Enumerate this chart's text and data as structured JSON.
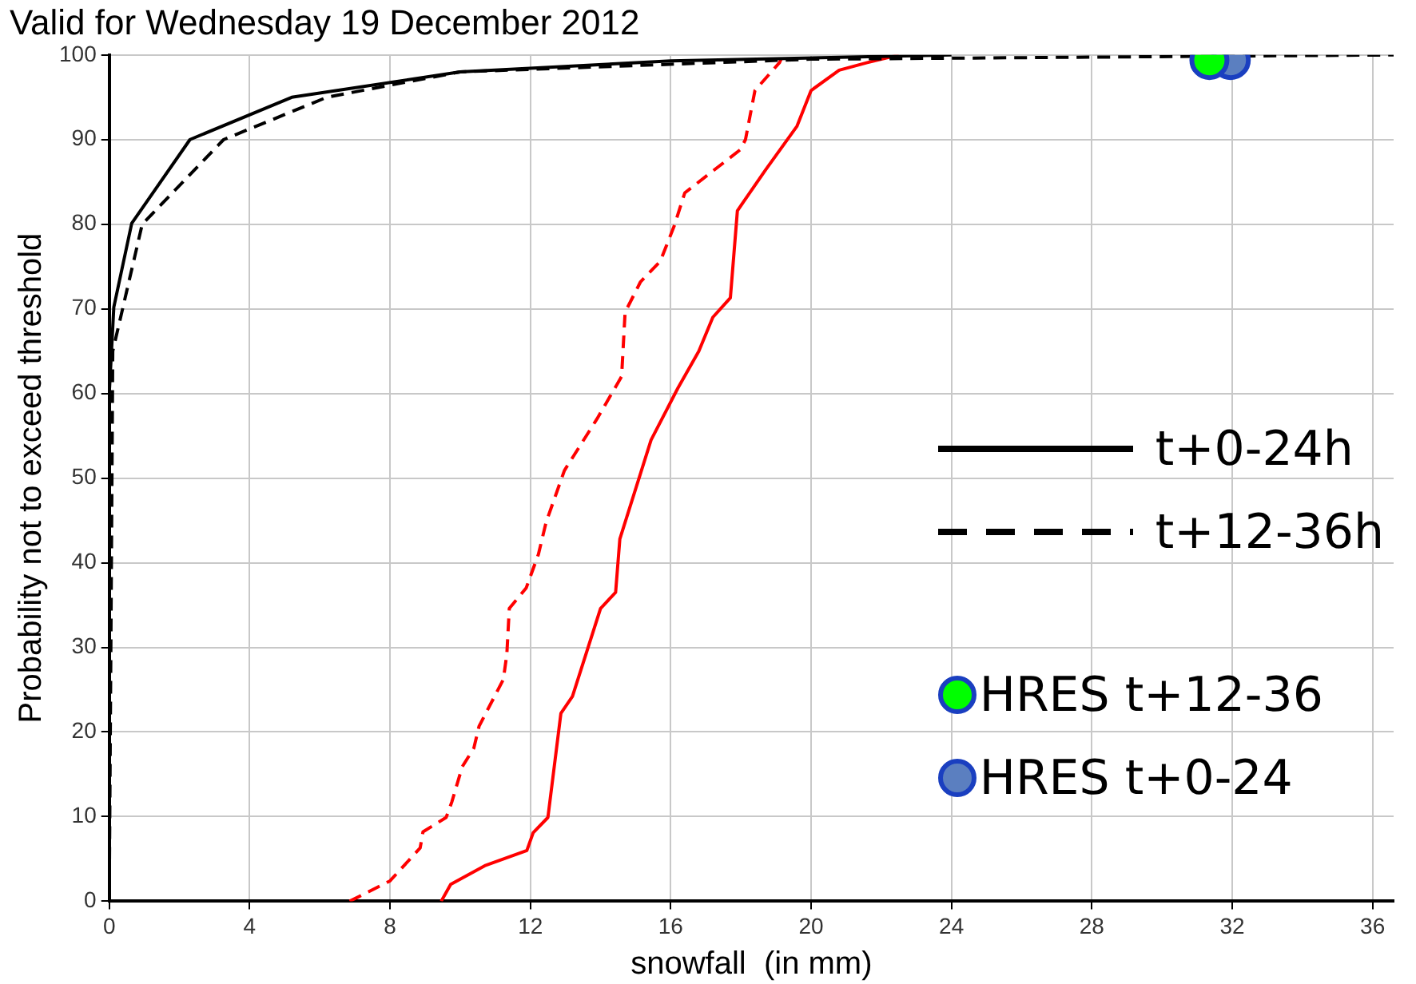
{
  "chart_data": {
    "type": "line",
    "title": "Valid for Wednesday 19 December 2012",
    "xlabel": "snowfall  (in mm)",
    "ylabel": "Probability not to exceed threshold",
    "xlim": [
      0,
      36.6
    ],
    "xticks": [
      0,
      4,
      8,
      12,
      16,
      20,
      24,
      28,
      32,
      36
    ],
    "ylim": [
      0,
      100
    ],
    "yticks": [
      0,
      10,
      20,
      30,
      40,
      50,
      60,
      70,
      80,
      90,
      100
    ],
    "grid": true,
    "legend": "right",
    "marker": "none",
    "series": [
      {
        "name": "t+0-24h",
        "color": "#000000",
        "line_style": "solid",
        "x": [
          0,
          0,
          0.13,
          0.64,
          2.3,
          5.2,
          10,
          16,
          24
        ],
        "values": [
          0,
          60,
          70.2,
          80.1,
          90,
          95,
          98,
          99.3,
          100
        ]
      },
      {
        "name": "t+12-36h",
        "color": "#000000",
        "line_style": "dashed",
        "x": [
          0,
          0.1,
          0.94,
          3.26,
          6.2,
          10,
          20,
          36.6
        ],
        "values": [
          0,
          65,
          80,
          90,
          95,
          98,
          99.5,
          100
        ]
      },
      {
        "color": "#ff0000",
        "line_style": "solid",
        "x": [
          9.46,
          9.73,
          10.7,
          11.9,
          12.08,
          12.5,
          12.87,
          13.2,
          14.0,
          14.43,
          14.55,
          15.44,
          16.2,
          16.8,
          17.2,
          17.7,
          17.9,
          18.7,
          19.6,
          20.0,
          20.8,
          21.6,
          22.5
        ],
        "values": [
          0,
          2,
          4.2,
          6,
          8.1,
          9.9,
          22.2,
          24.2,
          34.6,
          36.5,
          42.8,
          54.5,
          60.6,
          65,
          69,
          71.3,
          81.6,
          86.4,
          91.6,
          95.8,
          98.2,
          99.1,
          100
        ]
      },
      {
        "color": "#ff0000",
        "line_style": "dashed",
        "x": [
          6.85,
          8.0,
          8.86,
          8.94,
          9.6,
          9.76,
          10.06,
          10.39,
          10.54,
          11.23,
          11.33,
          11.4,
          11.88,
          12.23,
          12.45,
          12.97,
          13.9,
          14.6,
          14.7,
          15.14,
          15.7,
          16.1,
          16.4,
          17.98,
          18.13,
          18.4,
          19.1,
          19.2
        ],
        "values": [
          0,
          2.4,
          6.3,
          8.2,
          9.9,
          11.7,
          15.9,
          18.1,
          20.7,
          26.2,
          29.2,
          34.6,
          37,
          41,
          44.8,
          50.9,
          57,
          62,
          69.6,
          73.2,
          75.6,
          79.8,
          83.7,
          88.8,
          90,
          95.8,
          99.1,
          100
        ]
      },
      {
        "name": "HRES t+12-36",
        "type": "scatter",
        "marker": "circle",
        "color": "#00ff00",
        "x": [
          31.35
        ],
        "values": [
          99.4
        ]
      },
      {
        "name": "HRES t+0-24",
        "type": "scatter",
        "marker": "circle",
        "color": "#5b7fc0",
        "x": [
          31.96
        ],
        "values": [
          99.4
        ]
      }
    ]
  }
}
